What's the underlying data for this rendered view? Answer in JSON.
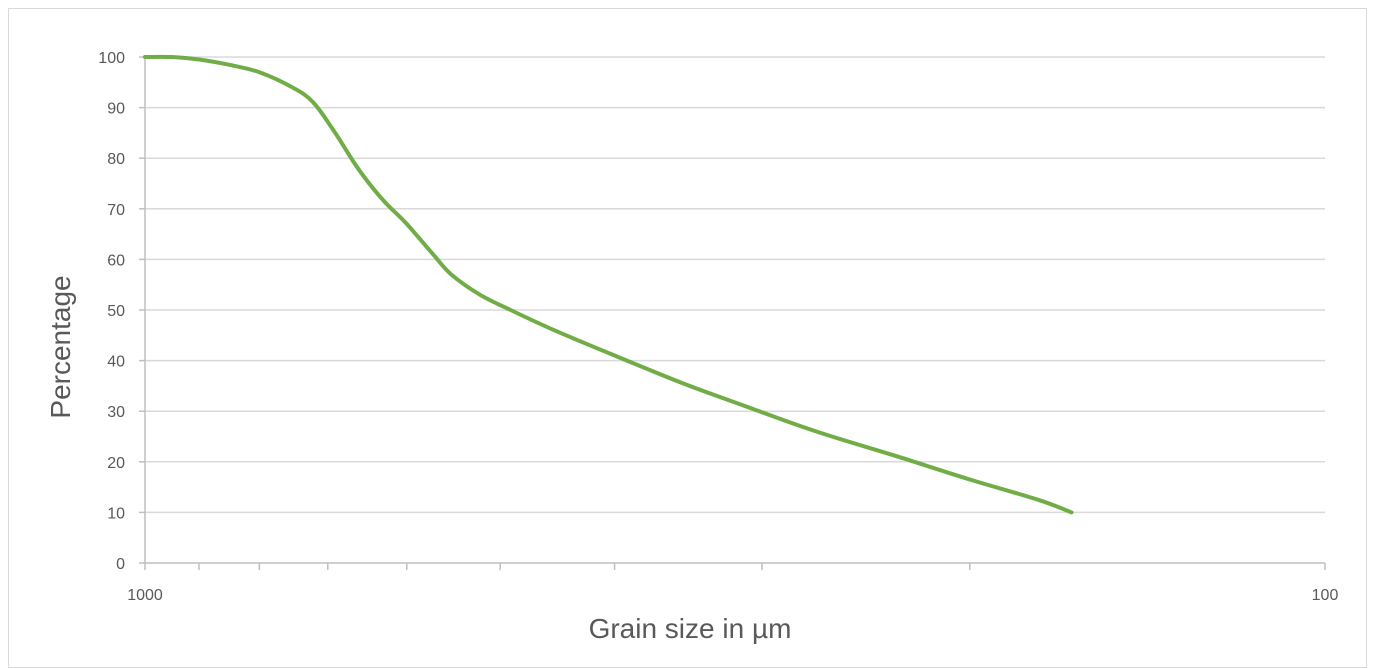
{
  "chart_data": {
    "type": "line",
    "title": "",
    "xlabel": "Grain size in µm",
    "ylabel": "Percentage",
    "x_scale": "log",
    "x_reversed": true,
    "xlim": [
      1000,
      100
    ],
    "ylim": [
      0,
      100
    ],
    "x_tick_labels": [
      "1000",
      "100"
    ],
    "y_ticks": [
      0,
      10,
      20,
      30,
      40,
      50,
      60,
      70,
      80,
      90,
      100
    ],
    "y_tick_labels": [
      "0",
      "10",
      "20",
      "30",
      "40",
      "50",
      "60",
      "70",
      "80",
      "90",
      "100"
    ],
    "grid": "horizontal",
    "legend": "none",
    "series": [
      {
        "color": "#70ad47",
        "points": [
          {
            "x": 1000,
            "y": 100
          },
          {
            "x": 950,
            "y": 100
          },
          {
            "x": 900,
            "y": 99.5
          },
          {
            "x": 850,
            "y": 98.5
          },
          {
            "x": 800,
            "y": 97
          },
          {
            "x": 750,
            "y": 94
          },
          {
            "x": 720,
            "y": 91
          },
          {
            "x": 690,
            "y": 85
          },
          {
            "x": 660,
            "y": 78
          },
          {
            "x": 630,
            "y": 72
          },
          {
            "x": 600,
            "y": 67
          },
          {
            "x": 570,
            "y": 61
          },
          {
            "x": 550,
            "y": 57
          },
          {
            "x": 520,
            "y": 53
          },
          {
            "x": 490,
            "y": 50
          },
          {
            "x": 450,
            "y": 46
          },
          {
            "x": 400,
            "y": 41
          },
          {
            "x": 350,
            "y": 35.5
          },
          {
            "x": 310,
            "y": 31
          },
          {
            "x": 270,
            "y": 26
          },
          {
            "x": 230,
            "y": 21
          },
          {
            "x": 200,
            "y": 16.5
          },
          {
            "x": 175,
            "y": 12.5
          },
          {
            "x": 164,
            "y": 10
          }
        ]
      }
    ]
  }
}
